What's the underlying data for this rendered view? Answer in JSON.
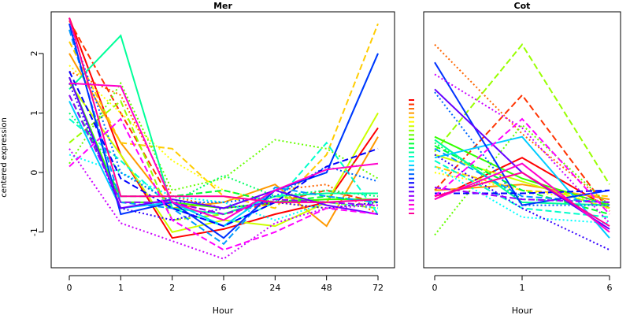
{
  "chart_data": [
    {
      "type": "line",
      "title": "Mer",
      "xlabel": "Hour",
      "ylabel": "centered expression",
      "categories": [
        "0",
        "1",
        "2",
        "6",
        "24",
        "48",
        "72"
      ],
      "ylim": [
        -1.6,
        2.7
      ],
      "yticks": [
        "-1",
        "0",
        "1",
        "2"
      ],
      "grid": false,
      "series": [
        {
          "color": "#ff0000",
          "dash": "solid",
          "values": [
            2.6,
            0.3,
            -1.1,
            -0.95,
            -0.7,
            -0.5,
            0.75
          ]
        },
        {
          "color": "#ff3300",
          "dash": "dashed",
          "values": [
            2.55,
            1.0,
            -0.5,
            -0.7,
            -0.5,
            -0.3,
            -0.5
          ]
        },
        {
          "color": "#ff6600",
          "dash": "dotted",
          "values": [
            1.7,
            1.3,
            -0.4,
            -0.6,
            -0.3,
            -0.2,
            -0.7
          ]
        },
        {
          "color": "#ff9900",
          "dash": "solid",
          "values": [
            2.0,
            0.5,
            -0.6,
            -0.5,
            -0.2,
            -0.9,
            0.6
          ]
        },
        {
          "color": "#ffcc00",
          "dash": "dashed",
          "values": [
            2.2,
            0.5,
            0.4,
            -0.4,
            -0.6,
            0.3,
            2.5
          ]
        },
        {
          "color": "#ffff00",
          "dash": "dotted",
          "values": [
            1.8,
            1.0,
            0.2,
            -0.3,
            -0.5,
            -0.6,
            -0.5
          ]
        },
        {
          "color": "#ccff00",
          "dash": "solid",
          "values": [
            1.5,
            0.3,
            -1.0,
            -0.8,
            -0.9,
            -0.5,
            1.0
          ]
        },
        {
          "color": "#99ff00",
          "dash": "dashed",
          "values": [
            0.5,
            1.2,
            -0.8,
            -0.7,
            -0.4,
            -0.5,
            -0.6
          ]
        },
        {
          "color": "#66ff00",
          "dash": "dotted",
          "values": [
            0.15,
            1.5,
            -0.3,
            -0.1,
            0.55,
            0.4,
            -0.1
          ]
        },
        {
          "color": "#33ff00",
          "dash": "solid",
          "values": [
            1.6,
            -0.5,
            -0.5,
            -0.6,
            -0.5,
            -0.45,
            -0.45
          ]
        },
        {
          "color": "#00ff33",
          "dash": "dashed",
          "values": [
            1.3,
            -0.4,
            -0.4,
            -0.3,
            -0.5,
            -0.4,
            -0.5
          ]
        },
        {
          "color": "#00ff66",
          "dash": "dotted",
          "values": [
            1.0,
            0.0,
            -0.5,
            -0.05,
            -0.4,
            -0.3,
            -0.4
          ]
        },
        {
          "color": "#00ff99",
          "dash": "solid",
          "values": [
            1.4,
            2.3,
            -0.6,
            -0.7,
            -0.4,
            -0.35,
            -0.35
          ]
        },
        {
          "color": "#00ffcc",
          "dash": "dashed",
          "values": [
            0.9,
            0.2,
            -0.6,
            -0.9,
            -0.5,
            0.5,
            -0.7
          ]
        },
        {
          "color": "#00ffff",
          "dash": "dotted",
          "values": [
            0.3,
            0.0,
            -0.4,
            -0.5,
            -0.8,
            -0.5,
            -0.6
          ]
        },
        {
          "color": "#00ccff",
          "dash": "solid",
          "values": [
            1.2,
            -0.6,
            -0.5,
            -0.9,
            -0.3,
            0.0,
            2.0
          ]
        },
        {
          "color": "#0099ff",
          "dash": "dashed",
          "values": [
            2.4,
            -0.5,
            -0.6,
            -1.2,
            -0.25,
            -0.4,
            -0.5
          ]
        },
        {
          "color": "#0066ff",
          "dash": "dotted",
          "values": [
            2.5,
            0.0,
            -0.5,
            -0.5,
            -0.4,
            0.1,
            -0.15
          ]
        },
        {
          "color": "#0033ff",
          "dash": "solid",
          "values": [
            2.5,
            -0.7,
            -0.5,
            -1.1,
            -0.3,
            0.0,
            2.0
          ]
        },
        {
          "color": "#0000ff",
          "dash": "dashed",
          "values": [
            1.7,
            -0.1,
            -0.6,
            -0.9,
            -0.5,
            0.1,
            0.4
          ]
        },
        {
          "color": "#3300ff",
          "dash": "dotted",
          "values": [
            1.5,
            -0.6,
            -0.8,
            -0.6,
            -0.5,
            -0.6,
            -0.5
          ]
        },
        {
          "color": "#6600ff",
          "dash": "solid",
          "values": [
            1.6,
            -0.6,
            -0.45,
            -0.6,
            -0.3,
            -0.55,
            -0.7
          ]
        },
        {
          "color": "#9900ff",
          "dash": "dashed",
          "values": [
            1.3,
            -0.5,
            -0.5,
            -0.7,
            -0.45,
            -0.5,
            -0.55
          ]
        },
        {
          "color": "#cc00ff",
          "dash": "dotted",
          "values": [
            0.4,
            -0.85,
            -1.15,
            -1.45,
            -0.85,
            -0.6,
            -0.55
          ]
        },
        {
          "color": "#ff00cc",
          "dash": "solid",
          "values": [
            1.5,
            1.45,
            -0.5,
            -0.8,
            -0.3,
            0.05,
            0.15
          ]
        },
        {
          "color": "#ff00ff",
          "dash": "dashed",
          "values": [
            0.1,
            0.9,
            -0.8,
            -1.3,
            -1.0,
            -0.6,
            -0.7
          ]
        },
        {
          "color": "#ff0099",
          "dash": "solid",
          "values": [
            2.6,
            -0.4,
            -0.4,
            -0.4,
            -0.5,
            -0.5,
            -0.45
          ]
        }
      ]
    },
    {
      "type": "line",
      "title": "Cot",
      "xlabel": "Hour",
      "ylabel": "",
      "categories": [
        "0",
        "1",
        "6"
      ],
      "ylim": [
        -1.6,
        2.7
      ],
      "yticks": [],
      "grid": false,
      "series": [
        {
          "color": "#ff0000",
          "dash": "solid",
          "values": [
            -0.45,
            0.25,
            -0.6
          ]
        },
        {
          "color": "#ff3300",
          "dash": "dashed",
          "values": [
            -0.3,
            1.3,
            -0.65
          ]
        },
        {
          "color": "#ff6600",
          "dash": "dotted",
          "values": [
            2.15,
            0.65,
            -0.55
          ]
        },
        {
          "color": "#ff9900",
          "dash": "solid",
          "values": [
            -0.3,
            -0.2,
            -0.45
          ]
        },
        {
          "color": "#ffcc00",
          "dash": "dashed",
          "values": [
            0.1,
            -0.3,
            -0.4
          ]
        },
        {
          "color": "#ffff00",
          "dash": "dotted",
          "values": [
            0.0,
            -0.3,
            -0.5
          ]
        },
        {
          "color": "#ccff00",
          "dash": "solid",
          "values": [
            0.3,
            -0.15,
            -0.6
          ]
        },
        {
          "color": "#99ff00",
          "dash": "dashed",
          "values": [
            0.35,
            2.15,
            -0.2
          ]
        },
        {
          "color": "#66ff00",
          "dash": "dotted",
          "values": [
            -1.05,
            0.8,
            -0.55
          ]
        },
        {
          "color": "#33ff00",
          "dash": "solid",
          "values": [
            0.6,
            -0.1,
            -0.55
          ]
        },
        {
          "color": "#00ff33",
          "dash": "dashed",
          "values": [
            0.45,
            -0.3,
            -0.7
          ]
        },
        {
          "color": "#00ff66",
          "dash": "dotted",
          "values": [
            0.5,
            -0.45,
            -0.5
          ]
        },
        {
          "color": "#00ff99",
          "dash": "solid",
          "values": [
            0.55,
            -0.5,
            -0.55
          ]
        },
        {
          "color": "#00ffcc",
          "dash": "dashed",
          "values": [
            0.2,
            -0.6,
            -0.75
          ]
        },
        {
          "color": "#00ffff",
          "dash": "dotted",
          "values": [
            0.1,
            -0.75,
            -0.85
          ]
        },
        {
          "color": "#00ccff",
          "dash": "solid",
          "values": [
            0.25,
            0.6,
            -1.1
          ]
        },
        {
          "color": "#0099ff",
          "dash": "dashed",
          "values": [
            0.4,
            -0.4,
            -0.5
          ]
        },
        {
          "color": "#0066ff",
          "dash": "dotted",
          "values": [
            1.35,
            -0.55,
            -0.55
          ]
        },
        {
          "color": "#0033ff",
          "dash": "solid",
          "values": [
            1.85,
            -0.55,
            -0.3
          ]
        },
        {
          "color": "#0000ff",
          "dash": "dashed",
          "values": [
            -0.35,
            -0.35,
            -0.3
          ]
        },
        {
          "color": "#3300ff",
          "dash": "dotted",
          "values": [
            0.3,
            -0.6,
            -1.3
          ]
        },
        {
          "color": "#6600ff",
          "dash": "solid",
          "values": [
            1.4,
            0.0,
            -0.95
          ]
        },
        {
          "color": "#9900ff",
          "dash": "dashed",
          "values": [
            -0.25,
            -0.45,
            -0.5
          ]
        },
        {
          "color": "#cc00ff",
          "dash": "dotted",
          "values": [
            1.65,
            0.75,
            -0.85
          ]
        },
        {
          "color": "#ff00cc",
          "dash": "solid",
          "values": [
            -0.45,
            0.15,
            -1.0
          ]
        },
        {
          "color": "#ff00ff",
          "dash": "dashed",
          "values": [
            -0.4,
            0.9,
            -0.7
          ]
        },
        {
          "color": "#ff0099",
          "dash": "solid",
          "values": [
            -0.4,
            0.0,
            -0.9
          ]
        }
      ]
    }
  ]
}
